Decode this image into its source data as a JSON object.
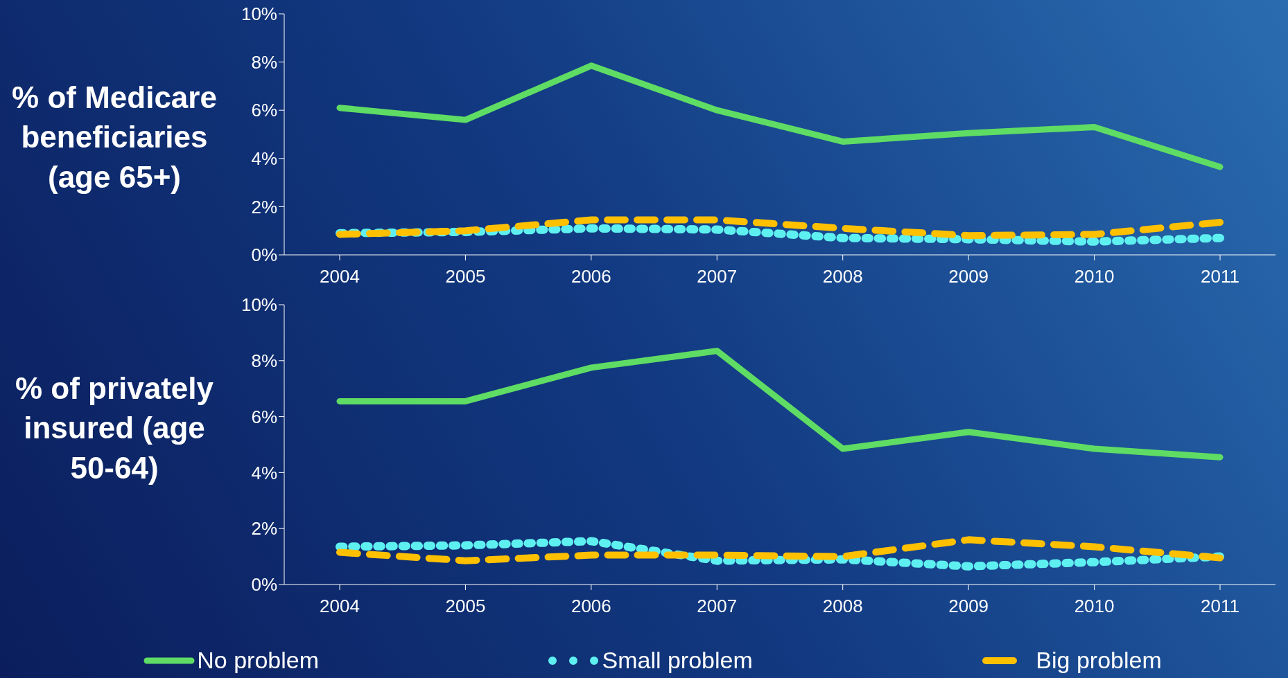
{
  "chart_data": [
    {
      "type": "line",
      "ylabel": "% of Medicare beneficiaries (age 65+)",
      "categories": [
        "2004",
        "2005",
        "2006",
        "2007",
        "2008",
        "2009",
        "2010",
        "2011"
      ],
      "ylim": [
        0,
        10
      ],
      "yticks": [
        {
          "value": 0,
          "label": "0%"
        },
        {
          "value": 2,
          "label": "2%"
        },
        {
          "value": 4,
          "label": "4%"
        },
        {
          "value": 6,
          "label": "6%"
        },
        {
          "value": 8,
          "label": "8%"
        },
        {
          "value": 10,
          "label": "10%"
        }
      ],
      "grid": false,
      "marker": "none",
      "series": [
        {
          "color": "#5fdc64",
          "line_style": "solid",
          "values": [
            6.1,
            5.6,
            7.85,
            6.0,
            4.7,
            5.05,
            5.3,
            3.65
          ]
        },
        {
          "color": "#5ef0f0",
          "line_style": "dotted",
          "values": [
            0.9,
            0.95,
            1.1,
            1.05,
            0.7,
            0.65,
            0.55,
            0.7
          ]
        },
        {
          "color": "#ffc000",
          "line_style": "dashed",
          "values": [
            0.85,
            1.0,
            1.45,
            1.45,
            1.1,
            0.8,
            0.85,
            1.35
          ]
        }
      ]
    },
    {
      "type": "line",
      "ylabel": "% of privately insured (age 50-64)",
      "categories": [
        "2004",
        "2005",
        "2006",
        "2007",
        "2008",
        "2009",
        "2010",
        "2011"
      ],
      "ylim": [
        0,
        10
      ],
      "yticks": [
        {
          "value": 0,
          "label": "0%"
        },
        {
          "value": 2,
          "label": "2%"
        },
        {
          "value": 4,
          "label": "4%"
        },
        {
          "value": 6,
          "label": "6%"
        },
        {
          "value": 8,
          "label": "8%"
        },
        {
          "value": 10,
          "label": "10%"
        }
      ],
      "grid": false,
      "marker": "none",
      "legend": "bottom",
      "series": [
        {
          "name": "No problem",
          "color": "#5fdc64",
          "line_style": "solid",
          "values": [
            6.55,
            6.55,
            7.75,
            8.35,
            4.85,
            5.45,
            4.85,
            4.55
          ]
        },
        {
          "name": "Small problem",
          "color": "#5ef0f0",
          "line_style": "dotted",
          "values": [
            1.35,
            1.4,
            1.55,
            0.85,
            0.9,
            0.65,
            0.8,
            1.0
          ]
        },
        {
          "name": "Big problem",
          "color": "#ffc000",
          "line_style": "dashed",
          "values": [
            1.15,
            0.85,
            1.05,
            1.05,
            1.0,
            1.6,
            1.35,
            0.95
          ]
        }
      ]
    }
  ]
}
